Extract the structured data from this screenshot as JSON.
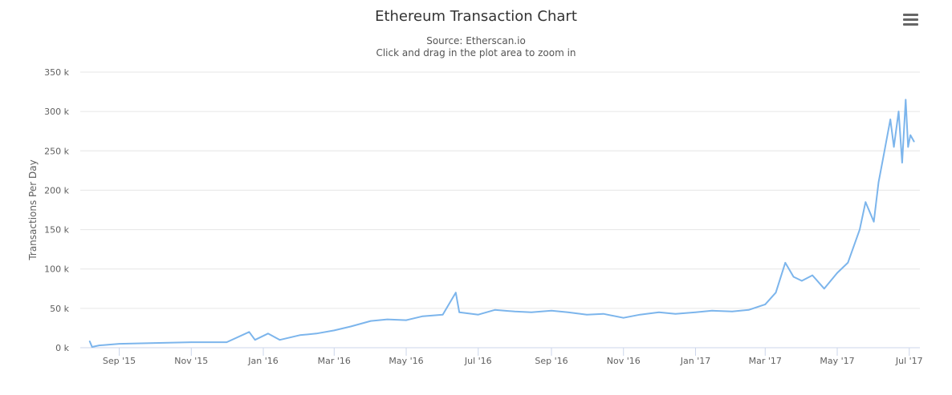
{
  "header": {
    "title": "Ethereum Transaction Chart",
    "subtitle_source": "Source: Etherscan.io",
    "subtitle_hint": "Click and drag in the plot area to zoom in"
  },
  "menu": {
    "icon": "hamburger-menu-icon"
  },
  "colors": {
    "series": "#7cb5ec",
    "grid": "#e6e6e6",
    "axis": "#ccd6eb",
    "text": "#606060"
  },
  "chart_data": {
    "type": "line",
    "title": "Ethereum Transaction Chart",
    "subtitle": "Source: Etherscan.io",
    "ylabel": "Transactions Per Day",
    "xlabel": "",
    "ylim": [
      0,
      350000
    ],
    "xlim": [
      "2015-07-30",
      "2017-07-10"
    ],
    "yticks": [
      0,
      50000,
      100000,
      150000,
      200000,
      250000,
      300000,
      350000
    ],
    "ytick_labels": [
      "0 k",
      "50 k",
      "100 k",
      "150 k",
      "200 k",
      "250 k",
      "300 k",
      "350 k"
    ],
    "xticks": [
      "2015-09-01",
      "2015-11-01",
      "2016-01-01",
      "2016-03-01",
      "2016-05-01",
      "2016-07-01",
      "2016-09-01",
      "2016-11-01",
      "2017-01-01",
      "2017-03-01",
      "2017-05-01",
      "2017-07-01"
    ],
    "xtick_labels": [
      "Sep '15",
      "Nov '15",
      "Jan '16",
      "Mar '16",
      "May '16",
      "Jul '16",
      "Sep '16",
      "Nov '16",
      "Jan '17",
      "Mar '17",
      "May '17",
      "Jul '17"
    ],
    "grid": true,
    "legend": "none",
    "series": [
      {
        "x": [
          "2015-08-07",
          "2015-08-09",
          "2015-08-15",
          "2015-09-01",
          "2015-10-01",
          "2015-11-01",
          "2015-12-01",
          "2015-12-20",
          "2015-12-25",
          "2016-01-05",
          "2016-01-15",
          "2016-02-01",
          "2016-02-15",
          "2016-03-01",
          "2016-03-15",
          "2016-04-01",
          "2016-04-15",
          "2016-05-01",
          "2016-05-15",
          "2016-06-01",
          "2016-06-12",
          "2016-06-15",
          "2016-07-01",
          "2016-07-15",
          "2016-08-01",
          "2016-08-15",
          "2016-09-01",
          "2016-09-15",
          "2016-10-01",
          "2016-10-15",
          "2016-11-01",
          "2016-11-15",
          "2016-12-01",
          "2016-12-15",
          "2017-01-01",
          "2017-01-15",
          "2017-02-01",
          "2017-02-15",
          "2017-03-01",
          "2017-03-10",
          "2017-03-18",
          "2017-03-25",
          "2017-04-01",
          "2017-04-10",
          "2017-04-20",
          "2017-05-01",
          "2017-05-10",
          "2017-05-20",
          "2017-05-25",
          "2017-06-01",
          "2017-06-05",
          "2017-06-10",
          "2017-06-15",
          "2017-06-18",
          "2017-06-22",
          "2017-06-25",
          "2017-06-28",
          "2017-06-30",
          "2017-07-02",
          "2017-07-05"
        ],
        "y": [
          8000,
          1000,
          3000,
          5000,
          6000,
          7000,
          7000,
          20000,
          10000,
          18000,
          10000,
          16000,
          18000,
          22000,
          27000,
          34000,
          36000,
          35000,
          40000,
          42000,
          70000,
          45000,
          42000,
          48000,
          46000,
          45000,
          47000,
          45000,
          42000,
          43000,
          38000,
          42000,
          45000,
          43000,
          45000,
          47000,
          46000,
          48000,
          55000,
          70000,
          108000,
          90000,
          85000,
          92000,
          75000,
          95000,
          108000,
          150000,
          185000,
          160000,
          210000,
          250000,
          290000,
          255000,
          300000,
          235000,
          315000,
          255000,
          270000,
          262000
        ]
      }
    ]
  }
}
